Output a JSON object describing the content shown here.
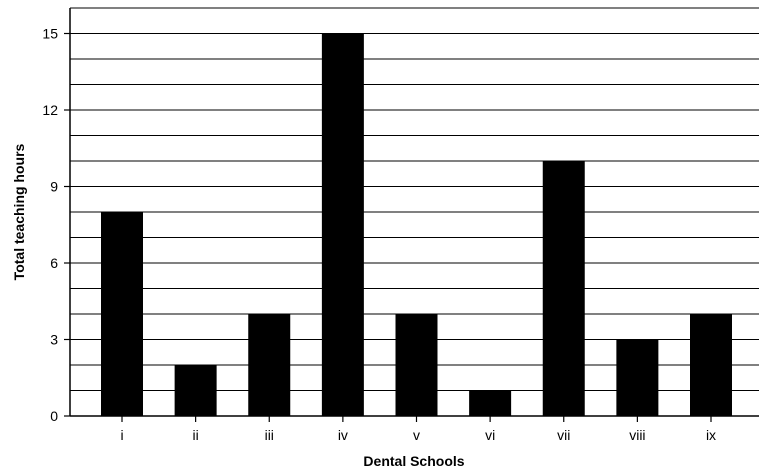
{
  "chart_data": {
    "type": "bar",
    "title": "",
    "xlabel": "Dental Schools",
    "ylabel": "Total teaching hours",
    "categories": [
      "i",
      "ii",
      "iii",
      "iv",
      "v",
      "vi",
      "vii",
      "viii",
      "ix"
    ],
    "values": [
      8,
      2,
      4,
      15,
      4,
      1,
      10,
      3,
      4
    ],
    "ylim": [
      0,
      16
    ],
    "yticks": [
      0,
      3,
      6,
      9,
      12,
      15
    ],
    "grid": "horizontal lines every 1 unit",
    "legend": "none",
    "bar_color": "#000000",
    "grid_color": "#000000",
    "background": "#ffffff"
  }
}
